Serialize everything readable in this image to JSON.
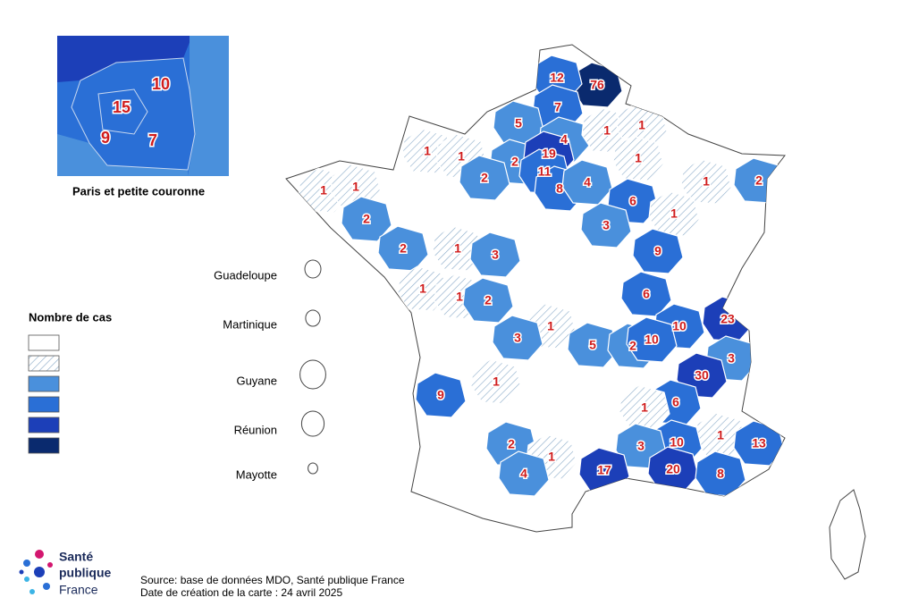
{
  "inset": {
    "title": "Paris et petite couronne",
    "departments": [
      {
        "value": 10,
        "class": 3
      },
      {
        "value": 15,
        "class": 3
      },
      {
        "value": 9,
        "class": 3
      },
      {
        "value": 7,
        "class": 3
      }
    ]
  },
  "legend": {
    "title": "Nombre de cas",
    "classes": [
      {
        "color": "#ffffff",
        "hatched": false
      },
      {
        "color": "#ffffff",
        "hatched": true
      },
      {
        "color": "#4a90dc",
        "hatched": false
      },
      {
        "color": "#2a6fd6",
        "hatched": false
      },
      {
        "color": "#1c3fb8",
        "hatched": false
      },
      {
        "color": "#0a2a6e",
        "hatched": false
      }
    ]
  },
  "overseas": [
    "Guadeloupe",
    "Martinique",
    "Guyane",
    "Réunion",
    "Mayotte"
  ],
  "departments": [
    {
      "value": 76,
      "class": 5
    },
    {
      "value": 12,
      "class": 3
    },
    {
      "value": 7,
      "class": 3
    },
    {
      "value": 5,
      "class": 2
    },
    {
      "value": 4,
      "class": 2
    },
    {
      "value": 1,
      "class": 1
    },
    {
      "value": 1,
      "class": 1
    },
    {
      "value": 1,
      "class": 1
    },
    {
      "value": 1,
      "class": 1
    },
    {
      "value": 2,
      "class": 2
    },
    {
      "value": 19,
      "class": 4
    },
    {
      "value": 11,
      "class": 3
    },
    {
      "value": 8,
      "class": 3
    },
    {
      "value": 2,
      "class": 2
    },
    {
      "value": 1,
      "class": 1
    },
    {
      "value": 1,
      "class": 1
    },
    {
      "value": 4,
      "class": 2
    },
    {
      "value": 1,
      "class": 1
    },
    {
      "value": 6,
      "class": 3
    },
    {
      "value": 1,
      "class": 1
    },
    {
      "value": 2,
      "class": 2
    },
    {
      "value": 2,
      "class": 2
    },
    {
      "value": 3,
      "class": 2
    },
    {
      "value": 1,
      "class": 1
    },
    {
      "value": 2,
      "class": 2
    },
    {
      "value": 1,
      "class": 1
    },
    {
      "value": 3,
      "class": 2
    },
    {
      "value": 9,
      "class": 3
    },
    {
      "value": 1,
      "class": 1
    },
    {
      "value": 1,
      "class": 1
    },
    {
      "value": 2,
      "class": 2
    },
    {
      "value": 6,
      "class": 3
    },
    {
      "value": 23,
      "class": 4
    },
    {
      "value": 1,
      "class": 1
    },
    {
      "value": 10,
      "class": 3
    },
    {
      "value": 3,
      "class": 2
    },
    {
      "value": 5,
      "class": 2
    },
    {
      "value": 2,
      "class": 2
    },
    {
      "value": 10,
      "class": 3
    },
    {
      "value": 3,
      "class": 2
    },
    {
      "value": 30,
      "class": 4
    },
    {
      "value": 9,
      "class": 3
    },
    {
      "value": 1,
      "class": 1
    },
    {
      "value": 6,
      "class": 3
    },
    {
      "value": 1,
      "class": 1
    },
    {
      "value": 1,
      "class": 1
    },
    {
      "value": 10,
      "class": 3
    },
    {
      "value": 13,
      "class": 3
    },
    {
      "value": 2,
      "class": 2
    },
    {
      "value": 3,
      "class": 2
    },
    {
      "value": 1,
      "class": 1
    },
    {
      "value": 17,
      "class": 4
    },
    {
      "value": 20,
      "class": 4
    },
    {
      "value": 8,
      "class": 3
    },
    {
      "value": 4,
      "class": 2
    }
  ],
  "logo": [
    "Santé",
    "publique",
    "France"
  ],
  "source": "Source: base de données MDO, Santé publique France",
  "date": "Date de création de la carte : 24 avril 2025"
}
